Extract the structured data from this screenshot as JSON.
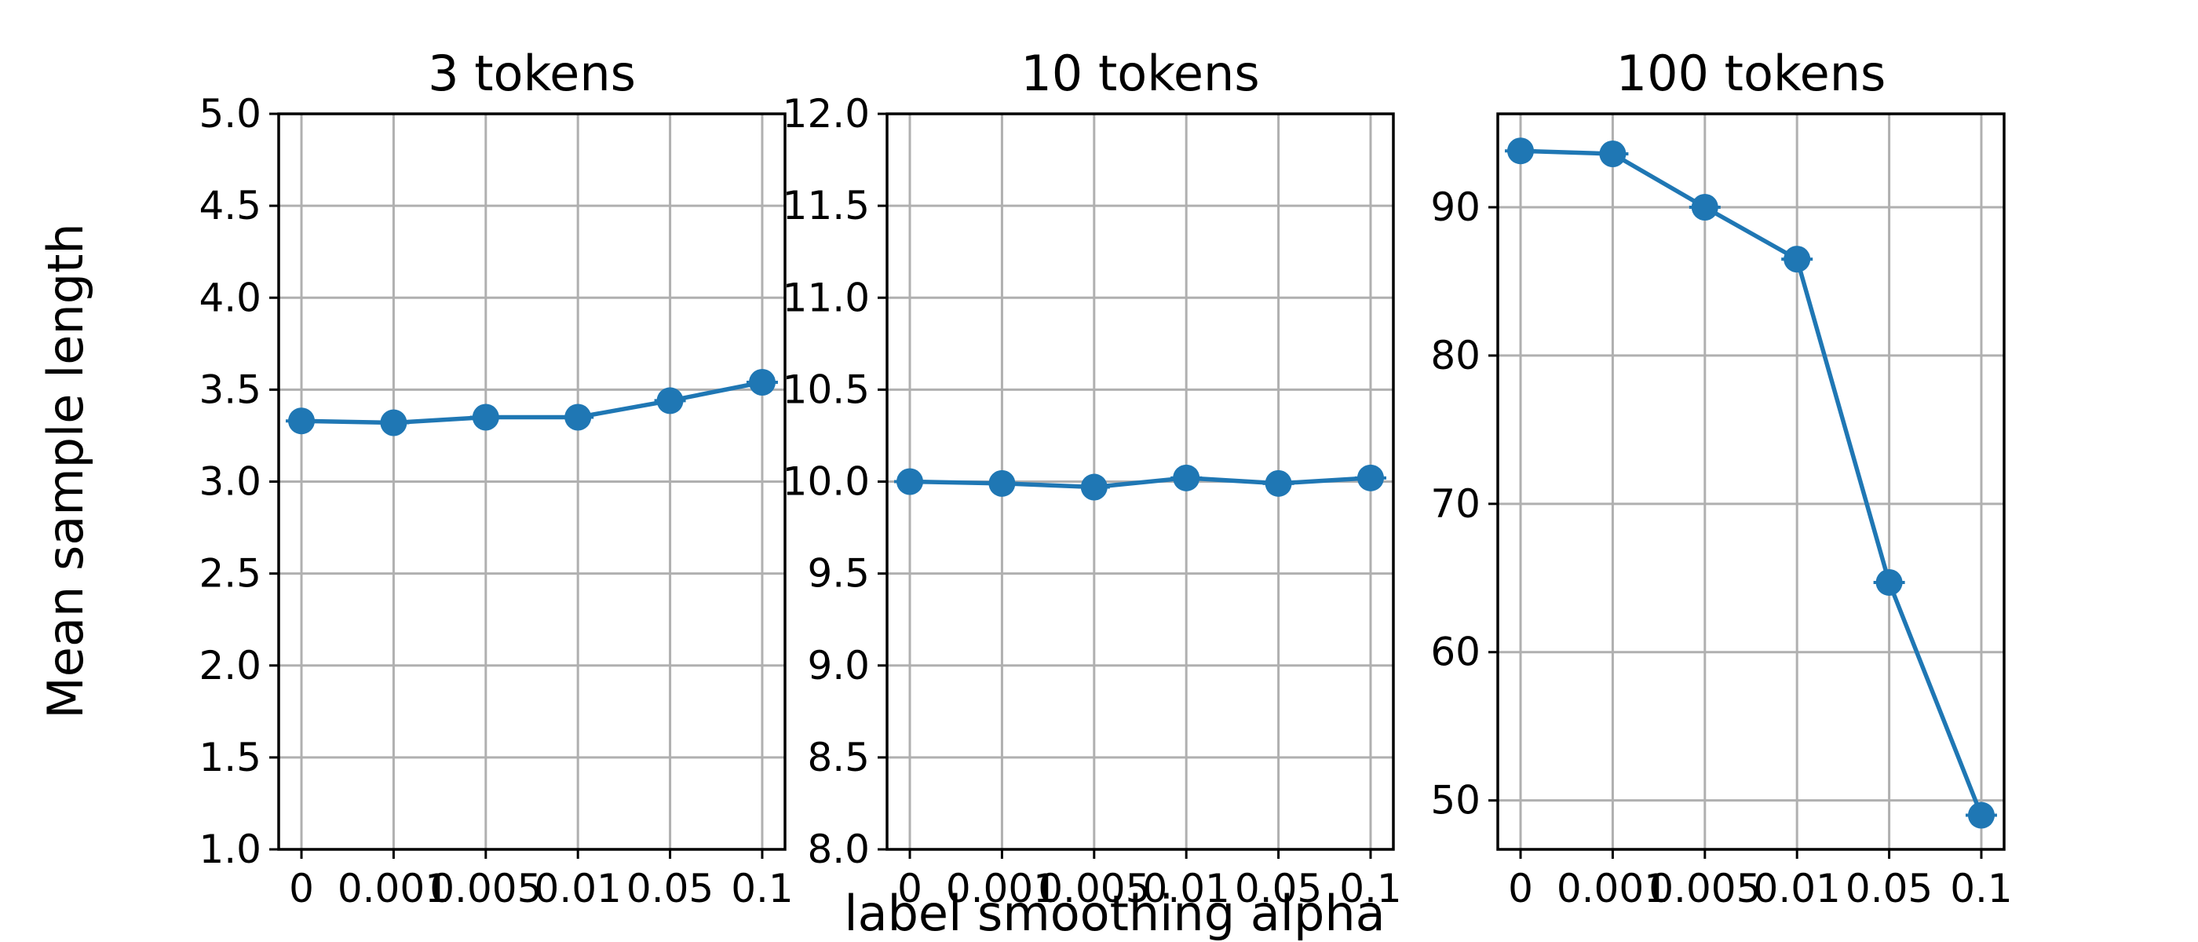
{
  "figure": {
    "xlabel": "label smoothing alpha",
    "ylabel": "Mean sample length"
  },
  "colors": {
    "series": "#1f77b4",
    "grid": "#b0b0b0",
    "axis": "#000000"
  },
  "chart_data": [
    {
      "type": "line",
      "title": "3 tokens",
      "categories": [
        "0",
        "0.001",
        "0.005",
        "0.01",
        "0.05",
        "0.1"
      ],
      "values": [
        3.33,
        3.32,
        3.35,
        3.35,
        3.44,
        3.54
      ],
      "ylim": [
        1.0,
        5.0
      ],
      "yticks": [
        "1.0",
        "1.5",
        "2.0",
        "2.5",
        "3.0",
        "3.5",
        "4.0",
        "4.5",
        "5.0"
      ],
      "grid": true,
      "markers": "circle"
    },
    {
      "type": "line",
      "title": "10 tokens",
      "categories": [
        "0",
        "0.001",
        "0.005",
        "0.01",
        "0.05",
        "0.1"
      ],
      "values": [
        10.0,
        9.99,
        9.97,
        10.02,
        9.99,
        10.02
      ],
      "ylim": [
        8.0,
        12.0
      ],
      "yticks": [
        "8.0",
        "8.5",
        "9.0",
        "9.5",
        "10.0",
        "10.5",
        "11.0",
        "11.5",
        "12.0"
      ],
      "grid": true,
      "markers": "circle"
    },
    {
      "type": "line",
      "title": "100 tokens",
      "categories": [
        "0",
        "0.001",
        "0.005",
        "0.01",
        "0.05",
        "0.1"
      ],
      "values": [
        93.8,
        93.6,
        90.0,
        86.5,
        64.7,
        49.0
      ],
      "ylim": [
        46.7,
        96.3
      ],
      "yticks": [
        "50",
        "60",
        "70",
        "80",
        "90"
      ],
      "grid": true,
      "markers": "circle"
    }
  ]
}
